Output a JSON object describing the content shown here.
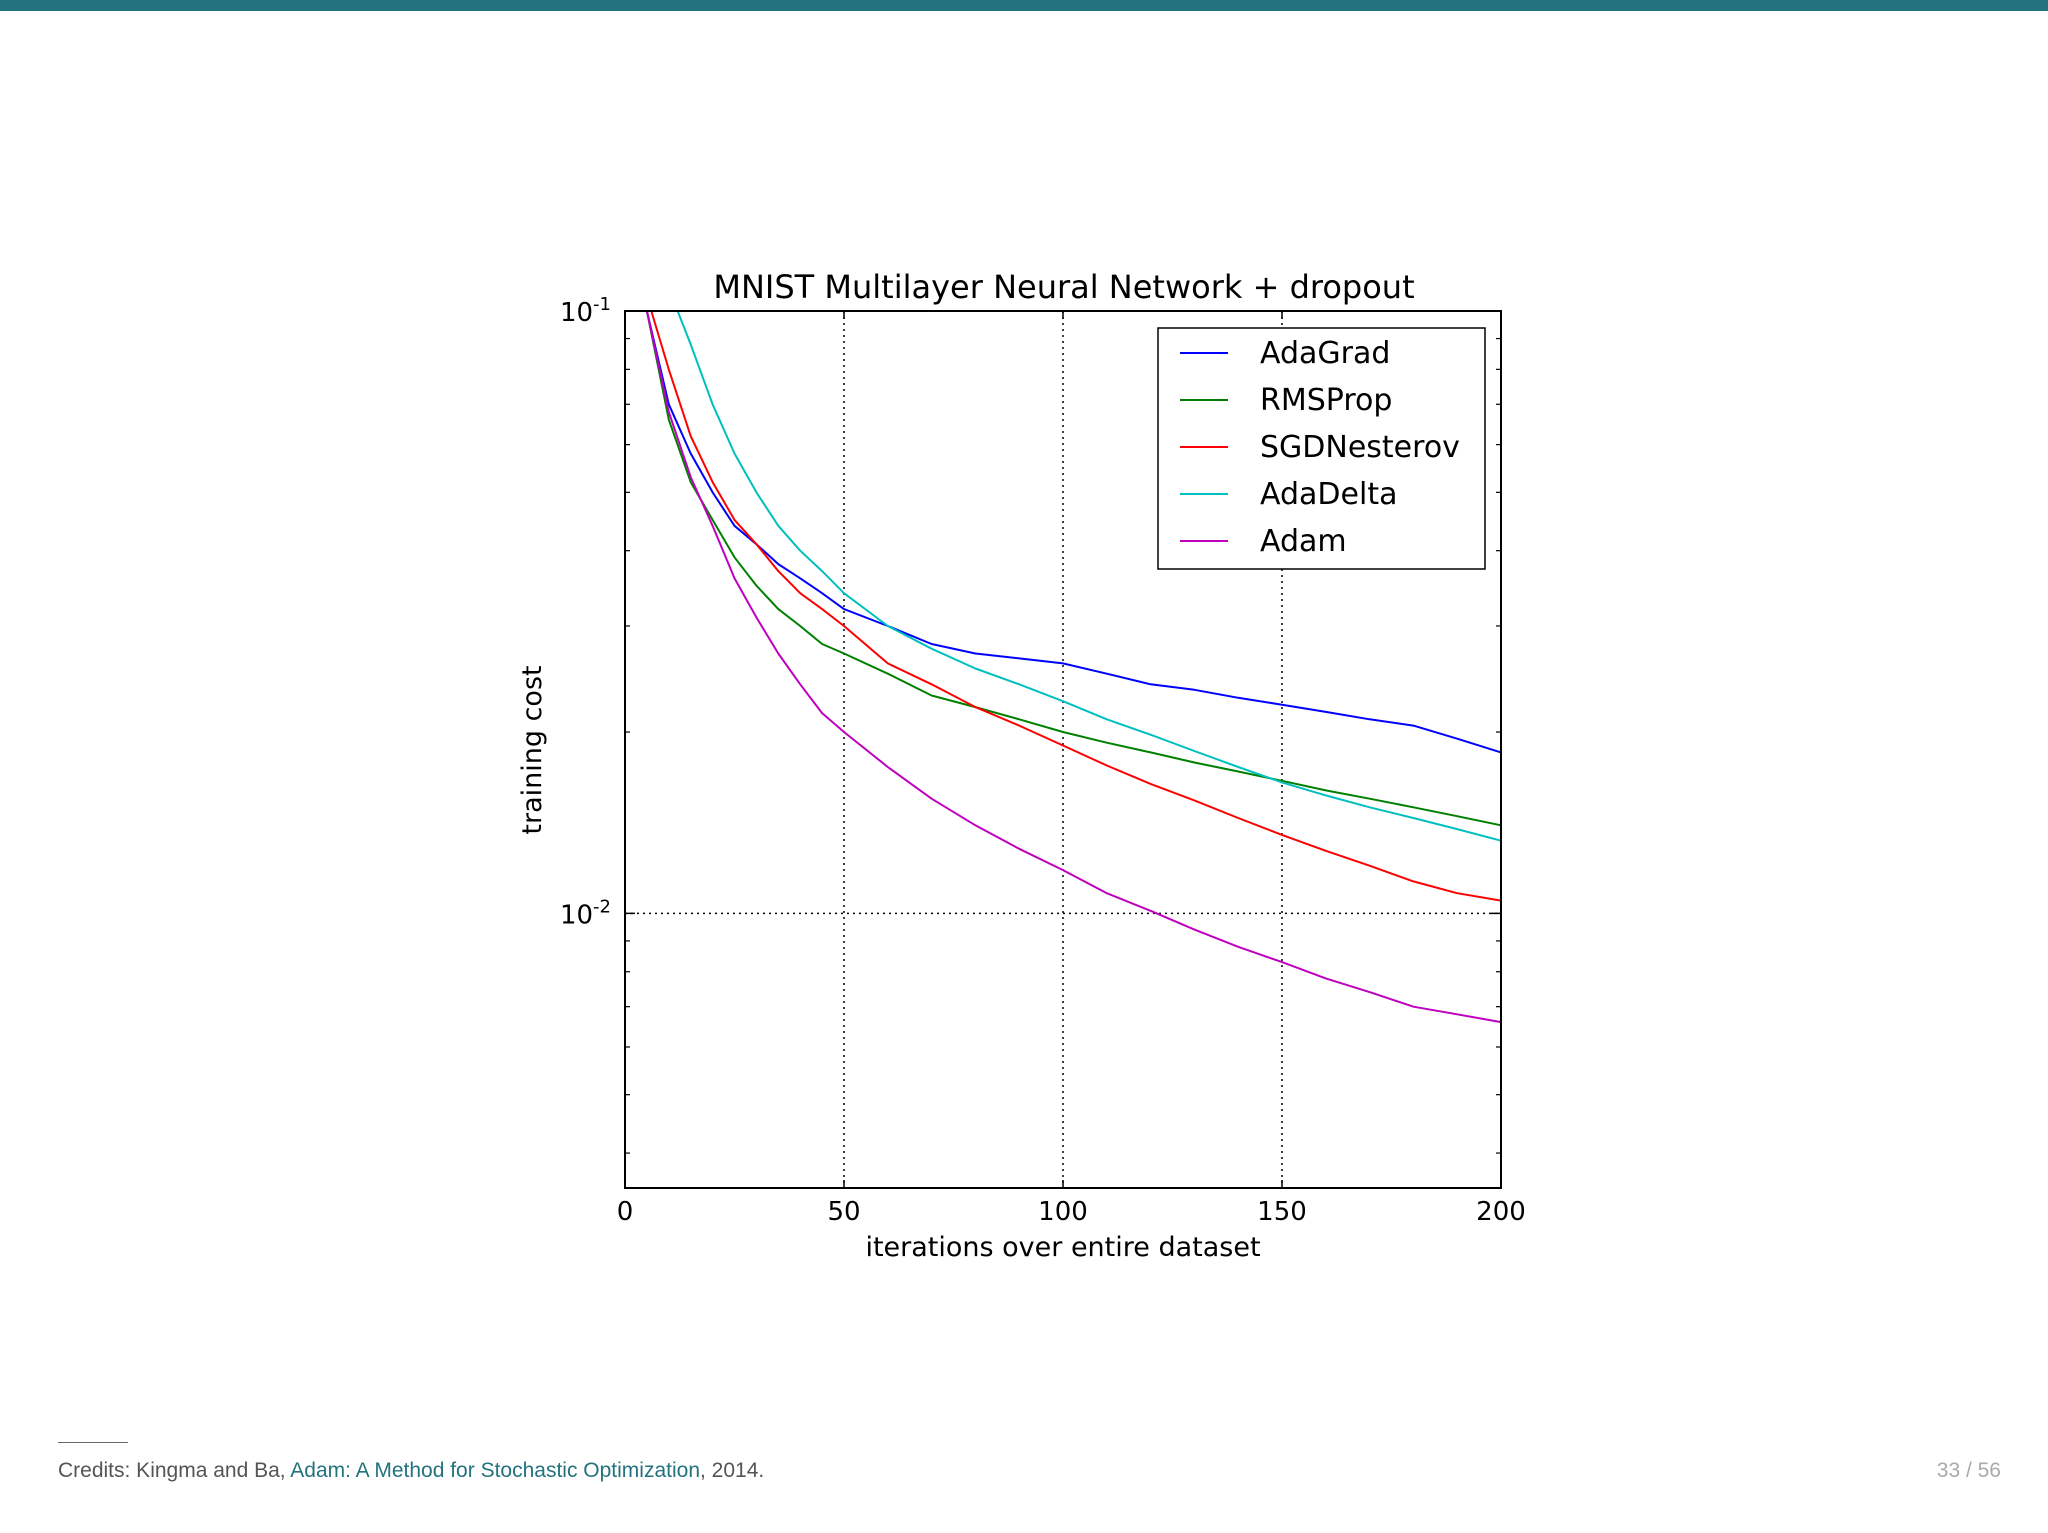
{
  "header": {
    "bar_color": "#23737e"
  },
  "chart_data": {
    "type": "line",
    "title": "MNIST Multilayer Neural Network + dropout",
    "xlabel": "iterations over entire dataset",
    "ylabel": "training cost",
    "xlim": [
      0,
      200
    ],
    "ylim": [
      0.0035,
      0.1
    ],
    "yscale": "log",
    "grid": "dotted",
    "legend_position": "top-right",
    "xticks": [
      "0",
      "50",
      "100",
      "150",
      "200"
    ],
    "yticks": [
      {
        "value": 0.1,
        "base": "10",
        "exp": "-1"
      },
      {
        "value": 0.01,
        "base": "10",
        "exp": "-2"
      }
    ],
    "series": [
      {
        "name": "AdaGrad",
        "color": "#0000ff",
        "x": [
          5,
          10,
          15,
          20,
          25,
          30,
          35,
          40,
          45,
          50,
          60,
          70,
          80,
          90,
          100,
          110,
          120,
          130,
          140,
          150,
          160,
          170,
          180,
          190,
          200
        ],
        "y": [
          0.1,
          0.07,
          0.058,
          0.05,
          0.044,
          0.041,
          0.038,
          0.036,
          0.034,
          0.032,
          0.03,
          0.028,
          0.027,
          0.0265,
          0.026,
          0.025,
          0.024,
          0.0235,
          0.0228,
          0.0222,
          0.0216,
          0.021,
          0.0205,
          0.0195,
          0.0185
        ]
      },
      {
        "name": "RMSProp",
        "color": "#008000",
        "x": [
          5,
          10,
          15,
          20,
          25,
          30,
          35,
          40,
          45,
          50,
          60,
          70,
          80,
          90,
          100,
          110,
          120,
          130,
          140,
          150,
          160,
          170,
          180,
          190,
          200
        ],
        "y": [
          0.1,
          0.066,
          0.052,
          0.045,
          0.039,
          0.035,
          0.032,
          0.03,
          0.028,
          0.027,
          0.025,
          0.023,
          0.022,
          0.021,
          0.02,
          0.0192,
          0.0185,
          0.0178,
          0.0172,
          0.0166,
          0.016,
          0.0155,
          0.015,
          0.0145,
          0.014
        ]
      },
      {
        "name": "SGDNesterov",
        "color": "#ff0000",
        "x": [
          6,
          10,
          15,
          20,
          25,
          30,
          35,
          40,
          45,
          50,
          60,
          70,
          80,
          90,
          100,
          110,
          120,
          130,
          140,
          150,
          160,
          170,
          180,
          190,
          200
        ],
        "y": [
          0.1,
          0.08,
          0.062,
          0.052,
          0.045,
          0.041,
          0.037,
          0.034,
          0.032,
          0.03,
          0.026,
          0.024,
          0.022,
          0.0205,
          0.019,
          0.0176,
          0.0164,
          0.0154,
          0.0144,
          0.0135,
          0.0127,
          0.012,
          0.0113,
          0.0108,
          0.0105
        ]
      },
      {
        "name": "AdaDelta",
        "color": "#00bfbf",
        "x": [
          12,
          15,
          20,
          25,
          30,
          35,
          40,
          45,
          50,
          60,
          70,
          80,
          90,
          100,
          110,
          120,
          130,
          140,
          150,
          160,
          170,
          180,
          190,
          200
        ],
        "y": [
          0.1,
          0.088,
          0.07,
          0.058,
          0.05,
          0.044,
          0.04,
          0.037,
          0.034,
          0.03,
          0.0275,
          0.0255,
          0.024,
          0.0225,
          0.021,
          0.0198,
          0.0186,
          0.0175,
          0.0165,
          0.0157,
          0.015,
          0.0144,
          0.0138,
          0.0132
        ]
      },
      {
        "name": "Adam",
        "color": "#bf00bf",
        "x": [
          5,
          10,
          15,
          20,
          25,
          30,
          35,
          40,
          45,
          50,
          60,
          70,
          80,
          90,
          100,
          110,
          120,
          130,
          140,
          150,
          160,
          170,
          180,
          190,
          200
        ],
        "y": [
          0.1,
          0.068,
          0.053,
          0.044,
          0.036,
          0.031,
          0.027,
          0.024,
          0.0215,
          0.02,
          0.0175,
          0.0155,
          0.014,
          0.0128,
          0.0118,
          0.0108,
          0.0101,
          0.0094,
          0.0088,
          0.0083,
          0.0078,
          0.0074,
          0.007,
          0.0068,
          0.0066
        ]
      }
    ]
  },
  "footnote": {
    "prefix": "Credits: Kingma and Ba, ",
    "link_text": "Adam: A Method for Stochastic Optimization",
    "suffix": ", 2014.",
    "link_color": "#23737e"
  },
  "page_number": "33 / 56"
}
